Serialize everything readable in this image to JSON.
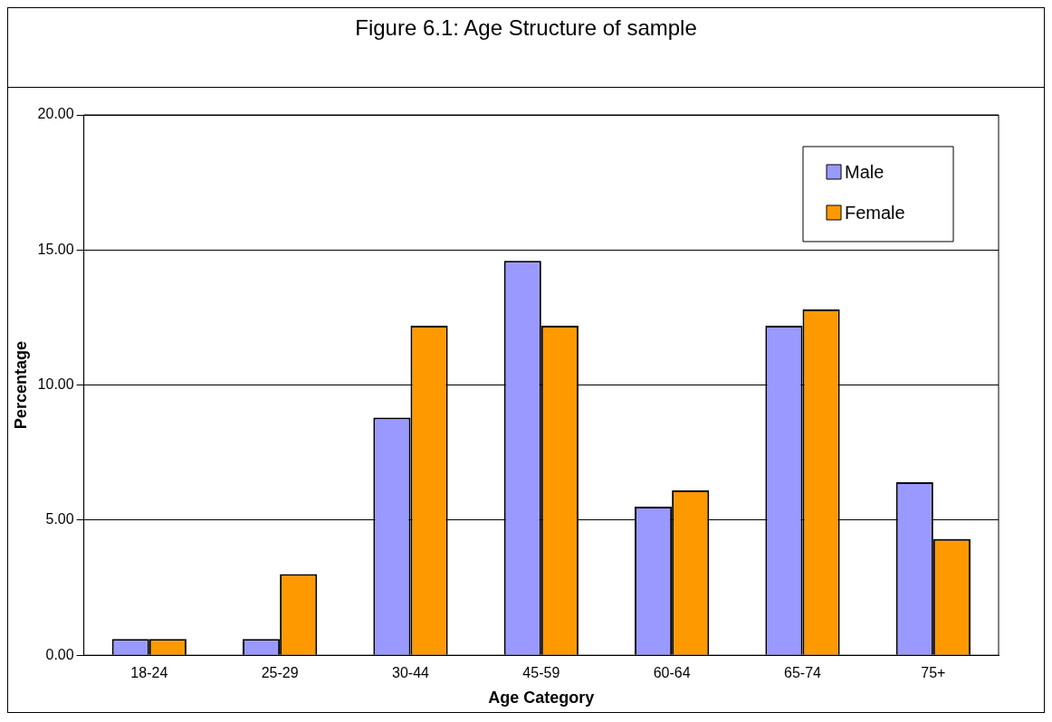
{
  "chart_data": {
    "type": "bar",
    "title": "Figure 6.1: Age Structure of sample",
    "xlabel": "Age Category",
    "ylabel": "Percentage",
    "categories": [
      "18-24",
      "25-29",
      "30-44",
      "45-59",
      "60-64",
      "65-74",
      "75+"
    ],
    "series": [
      {
        "name": "Male",
        "color": "#9999ff",
        "values": [
          0.6,
          0.6,
          8.8,
          14.6,
          5.5,
          12.2,
          6.4
        ]
      },
      {
        "name": "Female",
        "color": "#ff9900",
        "values": [
          0.6,
          3.0,
          12.2,
          12.2,
          6.1,
          12.8,
          4.3
        ]
      }
    ],
    "ylim": [
      0,
      20
    ],
    "yticks": [
      {
        "value": 0,
        "label": "0.00"
      },
      {
        "value": 5,
        "label": "5.00"
      },
      {
        "value": 10,
        "label": "10.00"
      },
      {
        "value": 15,
        "label": "15.00"
      },
      {
        "value": 20,
        "label": "20.00"
      }
    ],
    "grid": "y",
    "legend": "top right"
  }
}
